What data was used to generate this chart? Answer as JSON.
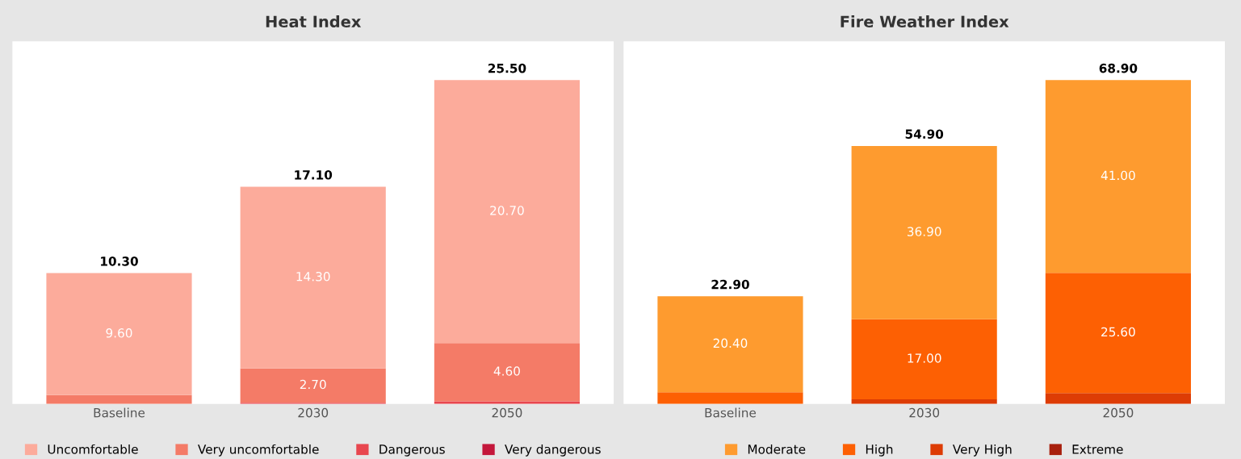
{
  "chart_data": [
    {
      "type": "bar",
      "title": "Heat Index",
      "stacked": true,
      "legend": "bottom",
      "grid": false,
      "categories": [
        "Baseline",
        "2030",
        "2050"
      ],
      "series": [
        {
          "name": "Very dangerous",
          "color": "#c4173b",
          "values": [
            null,
            null,
            null
          ],
          "value_labels": [
            null,
            null,
            null
          ]
        },
        {
          "name": "Dangerous",
          "color": "#e8474f",
          "values": [
            null,
            0.1,
            0.2
          ],
          "value_labels": [
            null,
            null,
            null
          ]
        },
        {
          "name": "Very uncomfortable",
          "color": "#f47b67",
          "values": [
            0.7,
            2.7,
            4.6
          ],
          "value_labels": [
            null,
            "2.70",
            "4.60"
          ]
        },
        {
          "name": "Uncomfortable",
          "color": "#fcab9b",
          "values": [
            9.6,
            14.3,
            20.7
          ],
          "value_labels": [
            "9.60",
            "14.30",
            "20.70"
          ]
        }
      ],
      "totals": [
        "10.30",
        "17.10",
        "25.50"
      ]
    },
    {
      "type": "bar",
      "title": "Fire Weather Index",
      "stacked": true,
      "legend": "bottom",
      "grid": false,
      "categories": [
        "Baseline",
        "2030",
        "2050"
      ],
      "series": [
        {
          "name": "Extreme",
          "color": "#a8200d",
          "values": [
            null,
            null,
            null
          ],
          "value_labels": [
            null,
            null,
            null
          ]
        },
        {
          "name": "Very High",
          "color": "#dd3c05",
          "values": [
            null,
            1.0,
            2.3
          ],
          "value_labels": [
            null,
            null,
            null
          ]
        },
        {
          "name": "High",
          "color": "#fd6003",
          "values": [
            2.5,
            17.0,
            25.6
          ],
          "value_labels": [
            null,
            "17.00",
            "25.60"
          ]
        },
        {
          "name": "Moderate",
          "color": "#fe9b2f",
          "values": [
            20.4,
            36.9,
            41.0
          ],
          "value_labels": [
            "20.40",
            "36.90",
            "41.00"
          ]
        }
      ],
      "totals": [
        "22.90",
        "54.90",
        "68.90"
      ]
    }
  ]
}
